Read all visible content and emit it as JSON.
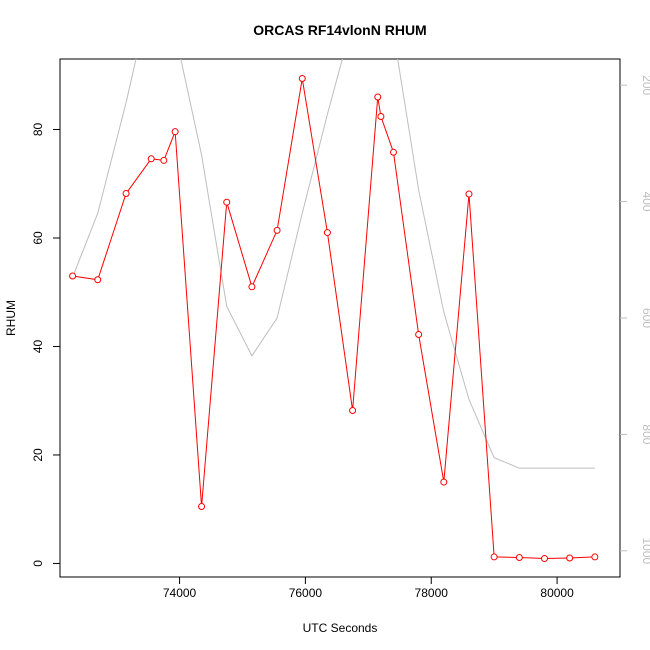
{
  "chart_data": {
    "type": "line",
    "title": "ORCAS RF14vlonN RHUM",
    "xlabel": "UTC Seconds",
    "ylabel": "RHUM",
    "xlim": [
      72100,
      81000
    ],
    "ylim": [
      -2.5,
      93
    ],
    "y2lim": [
      1045,
      155
    ],
    "y2_inverted": true,
    "x_ticks": [
      74000,
      76000,
      78000,
      80000
    ],
    "y_ticks": [
      0,
      20,
      40,
      60,
      80
    ],
    "y2_ticks": [
      200,
      400,
      600,
      800,
      1000
    ],
    "grid": false,
    "legend": "none",
    "series": [
      {
        "color": "#ff0000",
        "axis": "left",
        "markers": "open-circle",
        "x": [
          72300,
          72700,
          73150,
          73550,
          73750,
          73930,
          74350,
          74750,
          75150,
          75550,
          75950,
          76350,
          76750,
          77150,
          77200,
          77400,
          77800,
          78200,
          78600,
          79000,
          79400,
          79800,
          80200,
          80600
        ],
        "y": [
          53,
          52.3,
          68.2,
          74.6,
          74.3,
          79.6,
          10.5,
          66.6,
          51.0,
          61.4,
          89.4,
          61.0,
          28.2,
          86.0,
          82.4,
          75.8,
          42.2,
          15.0,
          68.1,
          1.2,
          1.1,
          0.9,
          1.0,
          1.2
        ]
      },
      {
        "color": "#bebebe",
        "axis": "right",
        "markers": "none",
        "x": [
          72300,
          72700,
          73150,
          73550,
          73750,
          73930,
          74350,
          74750,
          75150,
          75550,
          75950,
          76350,
          76750,
          77150,
          77200,
          77400,
          77800,
          78200,
          78600,
          79000,
          79400,
          79800,
          80200,
          80600
        ],
        "y": [
          530,
          420,
          230,
          40,
          -20,
          110,
          320,
          580,
          665,
          600,
          420,
          250,
          90,
          -20,
          60,
          110,
          380,
          590,
          740,
          840,
          858,
          858,
          858,
          858
        ]
      }
    ]
  }
}
